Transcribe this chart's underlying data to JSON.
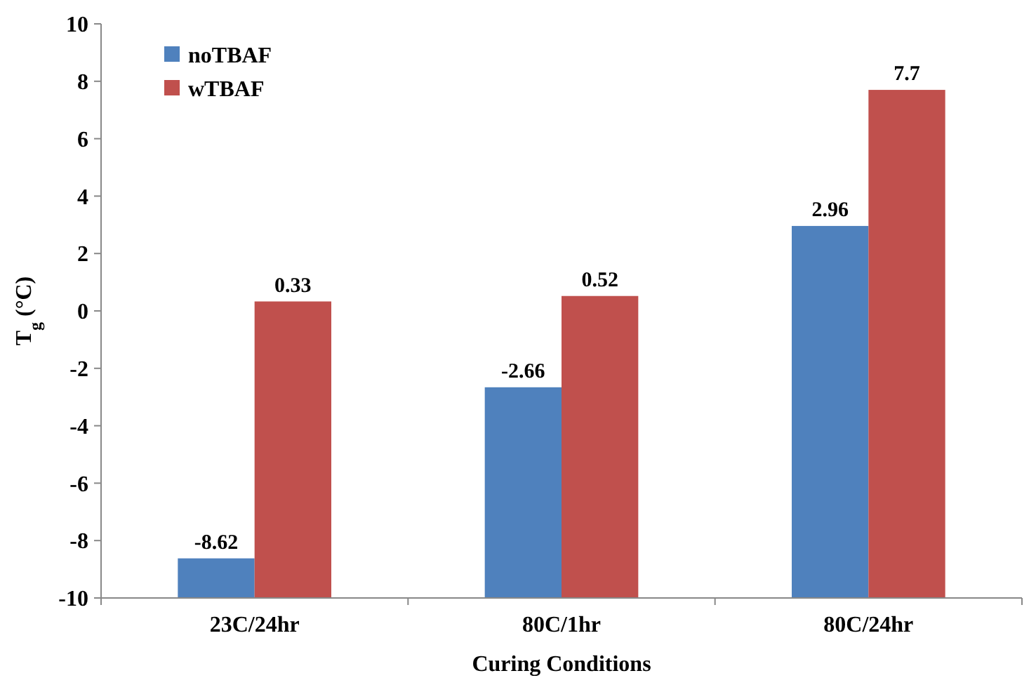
{
  "chart_data": {
    "type": "bar",
    "xlabel": "Curing Conditions",
    "ylabel": "T$_{g}$ (°C)",
    "categories": [
      "23C/24hr",
      "80C/1hr",
      "80C/24hr"
    ],
    "series": [
      {
        "name": "noTBAF",
        "color": "#4f81bd",
        "base": [
          -10,
          -10,
          -10
        ],
        "values": [
          1.38,
          7.34,
          12.96
        ],
        "value_labels": [
          "-8.62",
          "-2.66",
          "2.96"
        ]
      },
      {
        "name": "wTBAF",
        "color": "#c0504d",
        "base": [
          -10,
          -10,
          -10
        ],
        "values": [
          10.33,
          10.52,
          17.7
        ],
        "value_labels": [
          "0.33",
          "0.52",
          "7.7"
        ]
      }
    ],
    "ylim": [
      -10,
      10
    ],
    "yticks": [
      -10,
      -8,
      -6,
      -4,
      -2,
      0,
      2,
      4,
      6,
      8,
      10
    ],
    "grid": false,
    "legend": "top left"
  }
}
